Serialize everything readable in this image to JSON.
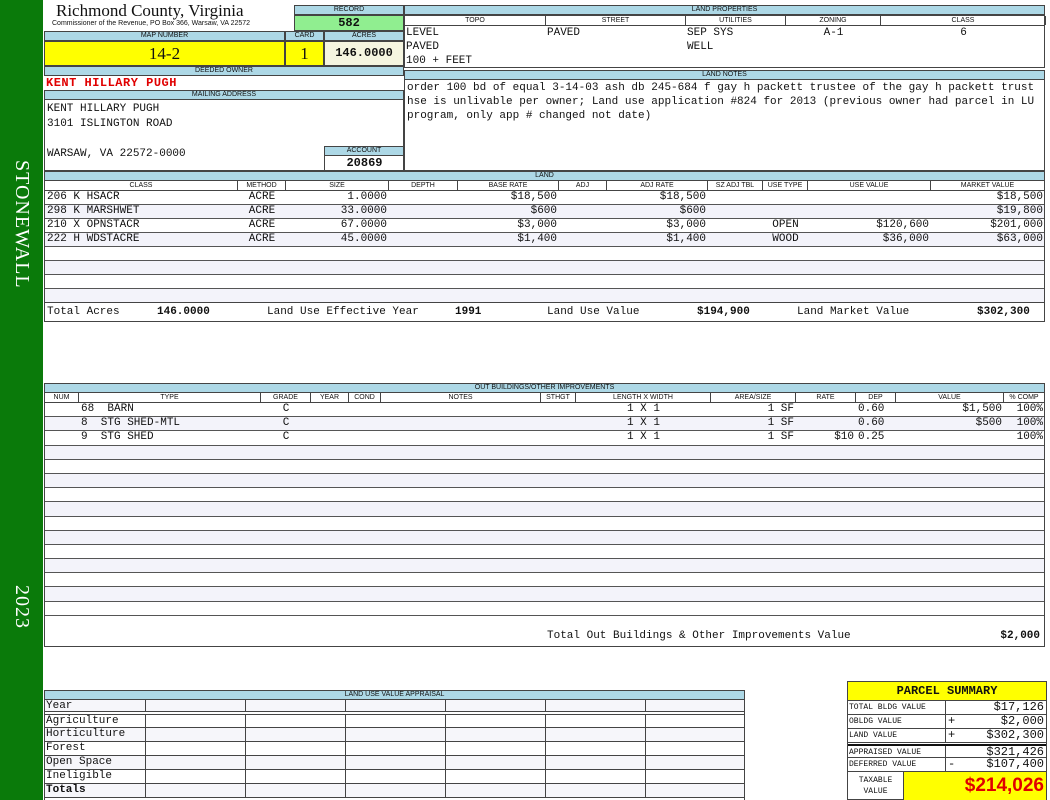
{
  "sidebar": {
    "district": "STONEWALL",
    "year": "2023"
  },
  "header": {
    "title": "Richmond County, Virginia",
    "subtitle": "Commissioner of the Revenue, PO Box 366, Warsaw, VA 22572",
    "record_label": "RECORD",
    "record": "582"
  },
  "parcel": {
    "map_label": "MAP NUMBER",
    "map_number": "14-2",
    "card_label": "CARD",
    "card": "1",
    "acres_label": "ACRES",
    "acres": "146.0000"
  },
  "owner": {
    "deeded_label": "DEEDED OWNER",
    "deeded": "KENT HILLARY PUGH",
    "mailing_label": "MAILING ADDRESS",
    "address": [
      "KENT HILLARY PUGH",
      "3101 ISLINGTON ROAD",
      "",
      "WARSAW, VA 22572-0000"
    ],
    "account_label": "ACCOUNT",
    "account": "20869"
  },
  "land_properties": {
    "title": "LAND PROPERTIES",
    "columns": [
      "TOPO",
      "STREET",
      "UTILITIES",
      "ZONING",
      "CLASS"
    ],
    "rows": [
      [
        "LEVEL",
        "PAVED",
        "SEP SYS",
        "A-1",
        "6"
      ],
      [
        "PAVED",
        "",
        "WELL",
        "",
        ""
      ],
      [
        "100 + FEET",
        "",
        "",
        "",
        ""
      ]
    ]
  },
  "land_notes": {
    "title": "LAND NOTES",
    "text": "order 100 bd of equal 3-14-03 ash db 245-684 f gay h packett trustee of the gay h packett trust hse is unlivable per owner; Land use application #824 for 2013 (previous owner had parcel in LU program, only app # changed not date)"
  },
  "land": {
    "title": "LAND",
    "columns": [
      "CLASS",
      "METHOD",
      "SIZE",
      "DEPTH",
      "BASE RATE",
      "ADJ",
      "ADJ RATE",
      "SZ ADJ TBL",
      "USE TYPE",
      "USE VALUE",
      "MARKET VALUE"
    ],
    "rows": [
      [
        "206 K HSACR",
        "ACRE",
        "1.0000",
        "",
        "$18,500",
        "",
        "$18,500",
        "",
        "",
        "",
        "$18,500"
      ],
      [
        "298 K MARSHWET",
        "ACRE",
        "33.0000",
        "",
        "$600",
        "",
        "$600",
        "",
        "",
        "",
        "$19,800"
      ],
      [
        "210 X OPNSTACR",
        "ACRE",
        "67.0000",
        "",
        "$3,000",
        "",
        "$3,000",
        "",
        "OPEN",
        "$120,600",
        "$201,000"
      ],
      [
        "222 H WDSTACRE",
        "ACRE",
        "45.0000",
        "",
        "$1,400",
        "",
        "$1,400",
        "",
        "WOOD",
        "$36,000",
        "$63,000"
      ],
      [
        "",
        "",
        "",
        "",
        "",
        "",
        "",
        "",
        "",
        "",
        ""
      ],
      [
        "",
        "",
        "",
        "",
        "",
        "",
        "",
        "",
        "",
        "",
        ""
      ],
      [
        "",
        "",
        "",
        "",
        "",
        "",
        "",
        "",
        "",
        "",
        ""
      ],
      [
        "",
        "",
        "",
        "",
        "",
        "",
        "",
        "",
        "",
        "",
        ""
      ]
    ],
    "totals": {
      "acres_label": "Total Acres",
      "acres": "146.0000",
      "effective_year_label": "Land Use Effective Year",
      "effective_year": "1991",
      "use_value_label": "Land Use Value",
      "use_value": "$194,900",
      "market_value_label": "Land Market Value",
      "market_value": "$302,300"
    }
  },
  "outbuildings": {
    "title": "OUT BUILDINGS/OTHER IMPROVEMENTS",
    "columns": [
      "NUM",
      "TYPE",
      "GRADE",
      "YEAR",
      "COND",
      "NOTES",
      "STHGT",
      "LENGTH X WIDTH",
      "AREA/SIZE",
      "RATE",
      "DEP",
      "VALUE",
      "% COMP"
    ],
    "rows": [
      [
        "",
        "68  BARN",
        "C",
        "",
        "",
        "",
        "",
        "1 X 1",
        "1 SF",
        "",
        "0.60",
        "$1,500",
        "100%"
      ],
      [
        "",
        "8  STG SHED-MTL",
        "C",
        "",
        "",
        "",
        "",
        "1 X 1",
        "1 SF",
        "",
        "0.60",
        "$500",
        "100%"
      ],
      [
        "",
        "9  STG SHED",
        "C",
        "",
        "",
        "",
        "",
        "1 X 1",
        "1 SF",
        "$10",
        "0.25",
        "",
        "100%"
      ]
    ],
    "total_label": "Total Out Buildings & Other Improvements Value",
    "total": "$2,000"
  },
  "land_use_appraisal": {
    "title": "LAND USE VALUE APPRAISAL",
    "rows": [
      "Year",
      "Agriculture",
      "Horticulture",
      "Forest",
      "Open Space",
      "Ineligible",
      "Totals"
    ]
  },
  "summary": {
    "title": "PARCEL SUMMARY",
    "rows": [
      {
        "label": "TOTAL BLDG VALUE",
        "op": "",
        "value": "$17,126"
      },
      {
        "label": "OBLDG VALUE",
        "op": "+",
        "value": "$2,000"
      },
      {
        "label": "LAND VALUE",
        "op": "+",
        "value": "$302,300"
      },
      {
        "label": "APPRAISED VALUE",
        "op": "",
        "value": "$321,426"
      },
      {
        "label": "DEFERRED VALUE",
        "op": "-",
        "value": "$107,400"
      }
    ],
    "taxable_label": "TAXABLE VALUE",
    "taxable": "$214,026"
  },
  "colors": {
    "sidebar": "#0a7a0a",
    "header": "#add8e6",
    "record": "#90ee90",
    "highlight": "#ffff00",
    "owner": "#e00000"
  }
}
